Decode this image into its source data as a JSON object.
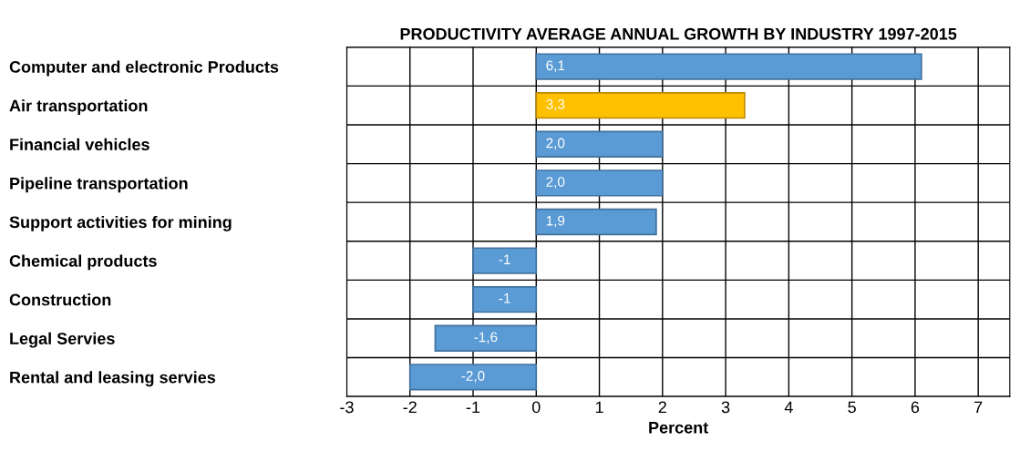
{
  "chart_data": {
    "type": "bar",
    "orientation": "horizontal",
    "title": "PRODUCTIVITY AVERAGE ANNUAL GROWTH BY INDUSTRY 1997-2015",
    "xlabel": "Percent",
    "categories": [
      "Computer and electronic Products",
      "Air transportation",
      "Financial vehicles",
      "Pipeline transportation",
      "Support activities for mining",
      "Chemical products",
      "Construction",
      "Legal Servies",
      "Rental and leasing servies"
    ],
    "values": [
      6.1,
      3.3,
      2.0,
      2.0,
      1.9,
      -1,
      -1,
      -1.6,
      -2.0
    ],
    "value_labels": [
      "6,1",
      "3,3",
      "2,0",
      "2,0",
      "1,9",
      "-1",
      "-1",
      "-1,6",
      "-2,0"
    ],
    "colors": [
      "#5b9bd5",
      "#ffc000",
      "#5b9bd5",
      "#5b9bd5",
      "#5b9bd5",
      "#5b9bd5",
      "#5b9bd5",
      "#5b9bd5",
      "#5b9bd5"
    ],
    "xlim": [
      -3,
      7.5
    ],
    "xticks": [
      -3,
      -2,
      -1,
      0,
      1,
      2,
      3,
      4,
      5,
      6,
      7
    ],
    "grid": true,
    "legend": false
  }
}
